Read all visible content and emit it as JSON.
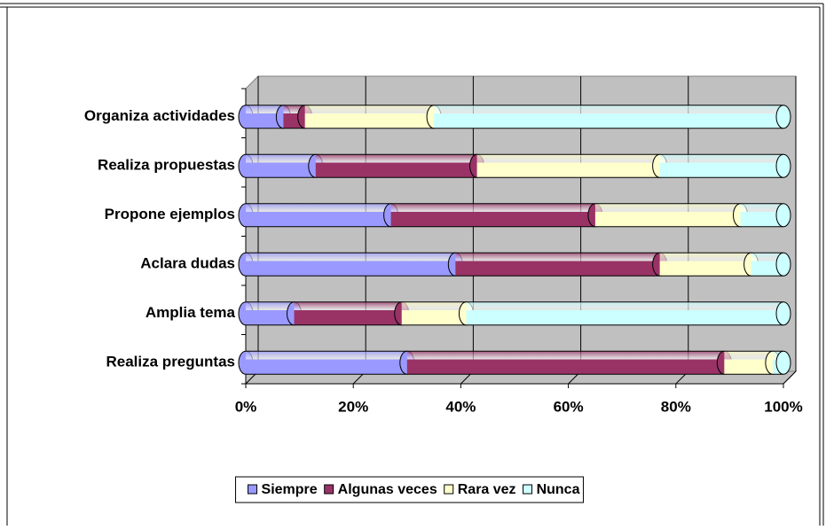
{
  "chart_data": {
    "type": "stacked_bar_horizontal",
    "categories": [
      "Organiza actividades",
      "Realiza propuestas",
      "Propone ejemplos",
      "Aclara dudas",
      "Amplia tema",
      "Realiza preguntas"
    ],
    "series": [
      {
        "name": "Siempre",
        "color": "#9999ff",
        "values": [
          7,
          13,
          27,
          39,
          9,
          30
        ]
      },
      {
        "name": "Algunas veces",
        "color": "#993366",
        "values": [
          4,
          30,
          38,
          38,
          20,
          59
        ]
      },
      {
        "name": "Rara vez",
        "color": "#ffffcc",
        "values": [
          24,
          34,
          27,
          17,
          12,
          9
        ]
      },
      {
        "name": "Nunca",
        "color": "#ccffff",
        "values": [
          65,
          23,
          8,
          6,
          59,
          2
        ]
      }
    ],
    "xlim": [
      0,
      100
    ],
    "xticks": [
      {
        "value": 0,
        "label": "0%"
      },
      {
        "value": 20,
        "label": "20%"
      },
      {
        "value": 40,
        "label": "40%"
      },
      {
        "value": 60,
        "label": "60%"
      },
      {
        "value": 80,
        "label": "80%"
      },
      {
        "value": 100,
        "label": "100%"
      }
    ],
    "grid": true,
    "legend": "bottom"
  }
}
